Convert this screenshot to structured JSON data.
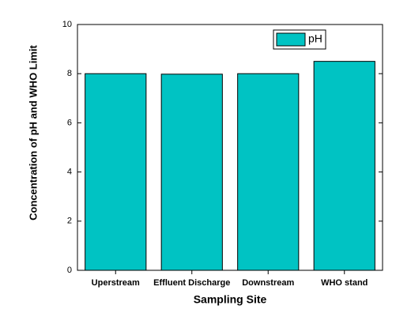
{
  "chart_data": {
    "type": "bar",
    "x_label": "Sampling Site",
    "y_label": "Concentration of pH and WHO Limit",
    "categories": [
      "Uperstream",
      "Effluent Discharge",
      "Downstream",
      "WHO stand"
    ],
    "series": [
      {
        "name": "pH",
        "color": "#00c3c3",
        "values": [
          8.0,
          7.98,
          8.0,
          8.5
        ]
      }
    ],
    "ylim": [
      0,
      10
    ],
    "yticks": [
      0,
      2,
      4,
      6,
      8,
      10
    ],
    "legend": "upper right"
  }
}
